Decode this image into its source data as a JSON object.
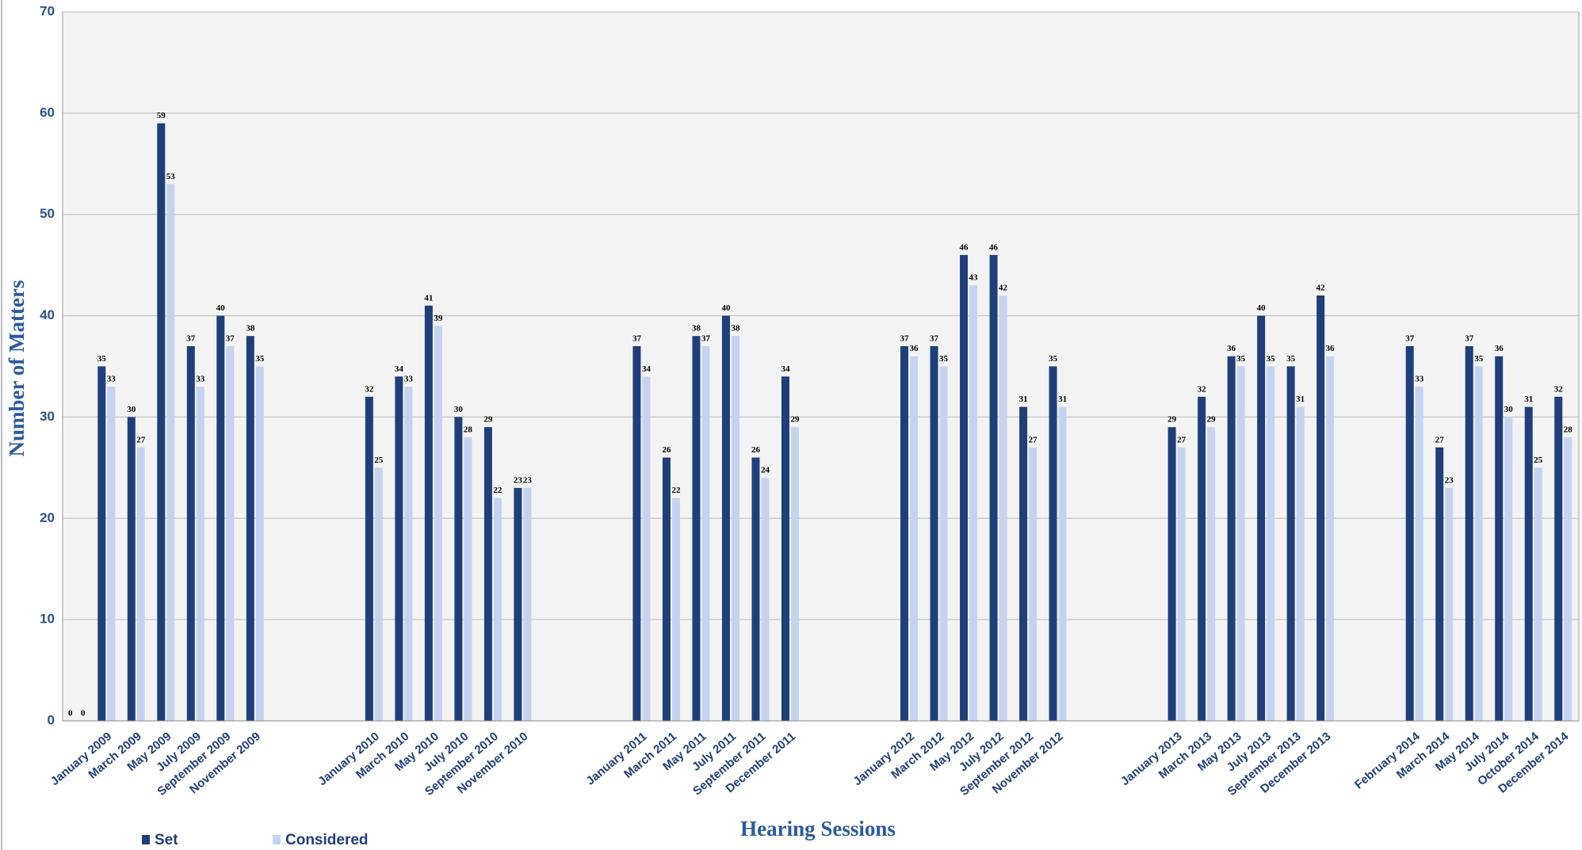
{
  "chart_data": {
    "type": "bar",
    "x_label": "Hearing Sessions",
    "y_label": "Number of Matters",
    "categories": [
      null,
      "January 2009",
      "March 2009",
      "May 2009",
      "July 2009",
      "September 2009",
      "November 2009",
      null,
      null,
      null,
      "January 2010",
      "March 2010",
      "May 2010",
      "July 2010",
      "September 2010",
      "November 2010",
      null,
      null,
      null,
      "January 2011",
      "March 2011",
      "May 2011",
      "July 2011",
      "September 2011",
      "December 2011",
      null,
      null,
      null,
      "January 2012",
      "March 2012",
      "May 2012",
      "July 2012",
      "September 2012",
      "November 2012",
      null,
      null,
      null,
      "January 2013",
      "March 2013",
      "May 2013",
      "July 2013",
      "September 2013",
      "December 2013",
      null,
      null,
      "February 2014",
      "March 2014",
      "May 2014",
      "July 2014",
      "October 2014",
      "December 2014"
    ],
    "series": [
      {
        "name": "Set",
        "color": "#1f3f7a",
        "values": [
          0,
          35,
          30,
          59,
          37,
          40,
          38,
          null,
          null,
          null,
          32,
          34,
          41,
          30,
          29,
          23,
          null,
          null,
          null,
          37,
          26,
          38,
          40,
          26,
          34,
          null,
          null,
          null,
          37,
          37,
          46,
          46,
          31,
          35,
          null,
          null,
          null,
          29,
          32,
          36,
          40,
          35,
          42,
          null,
          null,
          37,
          27,
          37,
          36,
          31,
          32
        ]
      },
      {
        "name": "Considered",
        "color": "#c5d3f0",
        "values": [
          0,
          33,
          27,
          53,
          33,
          37,
          35,
          null,
          null,
          null,
          25,
          33,
          39,
          28,
          22,
          23,
          null,
          null,
          null,
          34,
          22,
          37,
          38,
          24,
          29,
          null,
          null,
          null,
          36,
          35,
          43,
          42,
          27,
          31,
          null,
          null,
          null,
          27,
          29,
          35,
          35,
          31,
          36,
          null,
          null,
          33,
          23,
          35,
          30,
          25,
          28
        ]
      }
    ],
    "ylim": [
      0,
      70
    ],
    "yticks": [
      0,
      10,
      20,
      30,
      40,
      50,
      60,
      70
    ],
    "grid": true,
    "legend": "bottom-left"
  }
}
